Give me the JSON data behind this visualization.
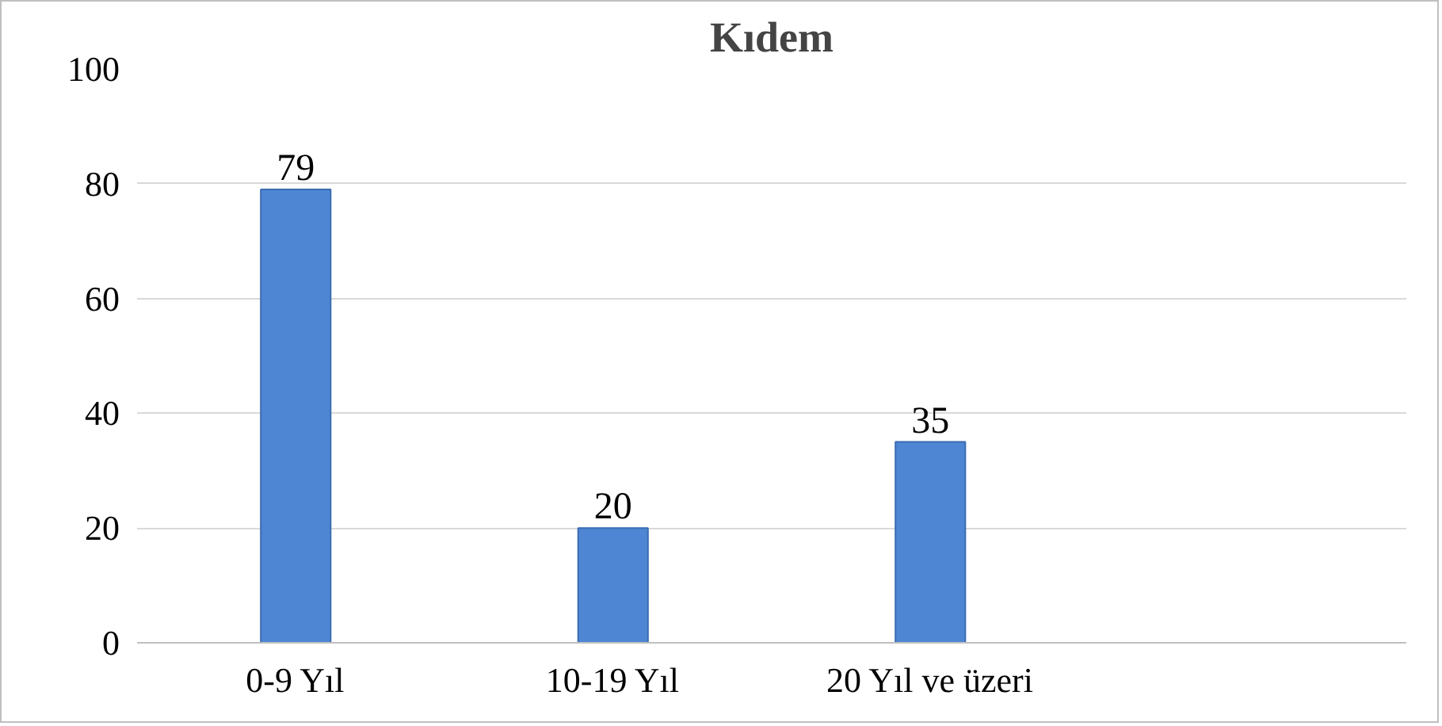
{
  "chart_data": {
    "type": "bar",
    "title": "Kıdem",
    "categories": [
      "0-9 Yıl",
      "10-19 Yıl",
      "20 Yıl ve üzeri",
      null
    ],
    "values": [
      79,
      20,
      35,
      null
    ],
    "color": "#4f86d3",
    "ylim": [
      0,
      100
    ],
    "yticks": [
      0,
      20,
      40,
      60,
      80,
      100
    ],
    "grid": "y",
    "data_labels": true
  }
}
